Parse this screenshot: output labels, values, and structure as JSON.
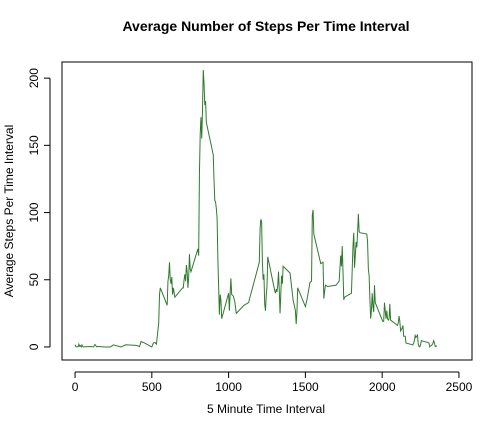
{
  "chart_data": {
    "type": "line",
    "title": "Average Number of Steps Per Time Interval",
    "x_label": "5 Minute Time Interval",
    "y_label": "Average Steps Per Time Interval",
    "x": [
      0,
      5,
      10,
      15,
      20,
      25,
      30,
      35,
      40,
      45,
      50,
      55,
      100,
      110,
      120,
      130,
      140,
      150,
      200,
      230,
      250,
      300,
      330,
      400,
      420,
      430,
      440,
      450,
      500,
      510,
      520,
      530,
      545,
      550,
      555,
      600,
      605,
      610,
      615,
      620,
      625,
      630,
      635,
      640,
      650,
      700,
      705,
      710,
      715,
      720,
      725,
      730,
      735,
      740,
      745,
      750,
      755,
      800,
      805,
      810,
      815,
      820,
      825,
      830,
      835,
      840,
      845,
      850,
      855,
      900,
      905,
      910,
      915,
      920,
      925,
      930,
      935,
      940,
      945,
      950,
      955,
      1000,
      1005,
      1010,
      1015,
      1020,
      1030,
      1040,
      1050,
      1100,
      1130,
      1200,
      1205,
      1210,
      1215,
      1220,
      1225,
      1230,
      1235,
      1240,
      1245,
      1250,
      1255,
      1300,
      1305,
      1310,
      1315,
      1320,
      1325,
      1330,
      1335,
      1340,
      1345,
      1350,
      1355,
      1400,
      1420,
      1435,
      1440,
      1445,
      1450,
      1500,
      1510,
      1530,
      1540,
      1545,
      1550,
      1555,
      1600,
      1615,
      1620,
      1630,
      1645,
      1700,
      1720,
      1730,
      1735,
      1740,
      1745,
      1750,
      1755,
      1800,
      1805,
      1810,
      1815,
      1820,
      1825,
      1830,
      1835,
      1840,
      1845,
      1850,
      1855,
      1900,
      1905,
      1910,
      1915,
      1920,
      1925,
      1930,
      1935,
      1940,
      1945,
      1950,
      1955,
      2000,
      2005,
      2010,
      2015,
      2020,
      2025,
      2030,
      2035,
      2040,
      2045,
      2050,
      2055,
      2100,
      2105,
      2110,
      2115,
      2120,
      2130,
      2135,
      2140,
      2145,
      2150,
      2155,
      2200,
      2205,
      2210,
      2215,
      2220,
      2230,
      2235,
      2240,
      2245,
      2250,
      2255,
      2300,
      2305,
      2310,
      2315,
      2320,
      2325,
      2330,
      2335,
      2340,
      2345,
      2350,
      2355
    ],
    "series": [
      {
        "color": "#2f7a2f",
        "values": [
          1.7,
          0.3,
          0.1,
          0.2,
          0.1,
          2.1,
          0.5,
          0.9,
          0,
          1.5,
          0.3,
          0.1,
          0.3,
          0.2,
          0,
          1.8,
          0.2,
          0.3,
          0,
          0,
          1.5,
          0,
          1.6,
          1.2,
          0.3,
          4.1,
          3.5,
          3.1,
          0,
          3,
          3.3,
          2.1,
          18,
          39,
          44,
          31,
          49,
          53,
          63,
          50,
          47,
          52,
          39,
          44,
          37,
          44,
          44,
          50,
          54,
          49,
          61,
          56,
          44,
          52,
          69,
          58,
          56,
          73,
          68,
          129,
          158,
          171,
          155,
          177,
          206,
          196,
          180,
          183,
          167,
          143,
          124,
          109,
          108,
          103,
          96,
          66,
          45,
          24,
          39,
          35,
          21,
          40,
          27,
          40,
          51,
          39,
          38,
          34,
          25,
          31,
          33,
          63,
          88,
          95,
          93,
          63,
          50,
          54,
          32,
          27,
          38,
          45,
          67,
          42,
          40,
          43,
          41,
          46,
          56,
          42,
          25,
          40,
          53,
          47,
          60,
          55,
          35,
          27,
          17,
          26,
          44,
          30,
          35,
          48,
          49,
          98,
          102,
          84,
          62,
          63,
          36,
          46,
          45,
          46,
          49,
          68,
          60,
          75,
          56,
          35,
          37,
          40,
          58,
          75,
          85,
          59,
          68,
          78,
          74,
          85,
          99,
          86,
          85,
          84,
          78,
          58,
          53,
          36,
          21,
          27,
          40,
          30,
          26,
          46,
          33,
          20,
          19,
          19,
          33,
          27,
          21,
          27,
          21,
          20,
          21,
          32,
          20,
          16,
          18,
          23,
          19,
          12,
          14,
          16,
          8,
          8,
          8,
          3,
          1.5,
          3,
          4.8,
          8.5,
          7.1,
          8.8,
          2.2,
          0.3,
          0.1,
          1.6,
          4.6,
          3.3,
          2.8,
          0,
          0.8,
          1,
          1.6,
          2.6,
          4.7,
          3.3,
          0.6,
          0.2,
          1.1
        ]
      }
    ],
    "xlim": [
      -85,
      2585
    ],
    "xticks": [
      0,
      500,
      1000,
      1500,
      2000,
      2500
    ],
    "ylim": [
      -9.7,
      212
    ],
    "yticks": [
      0,
      50,
      100,
      150,
      200
    ]
  }
}
